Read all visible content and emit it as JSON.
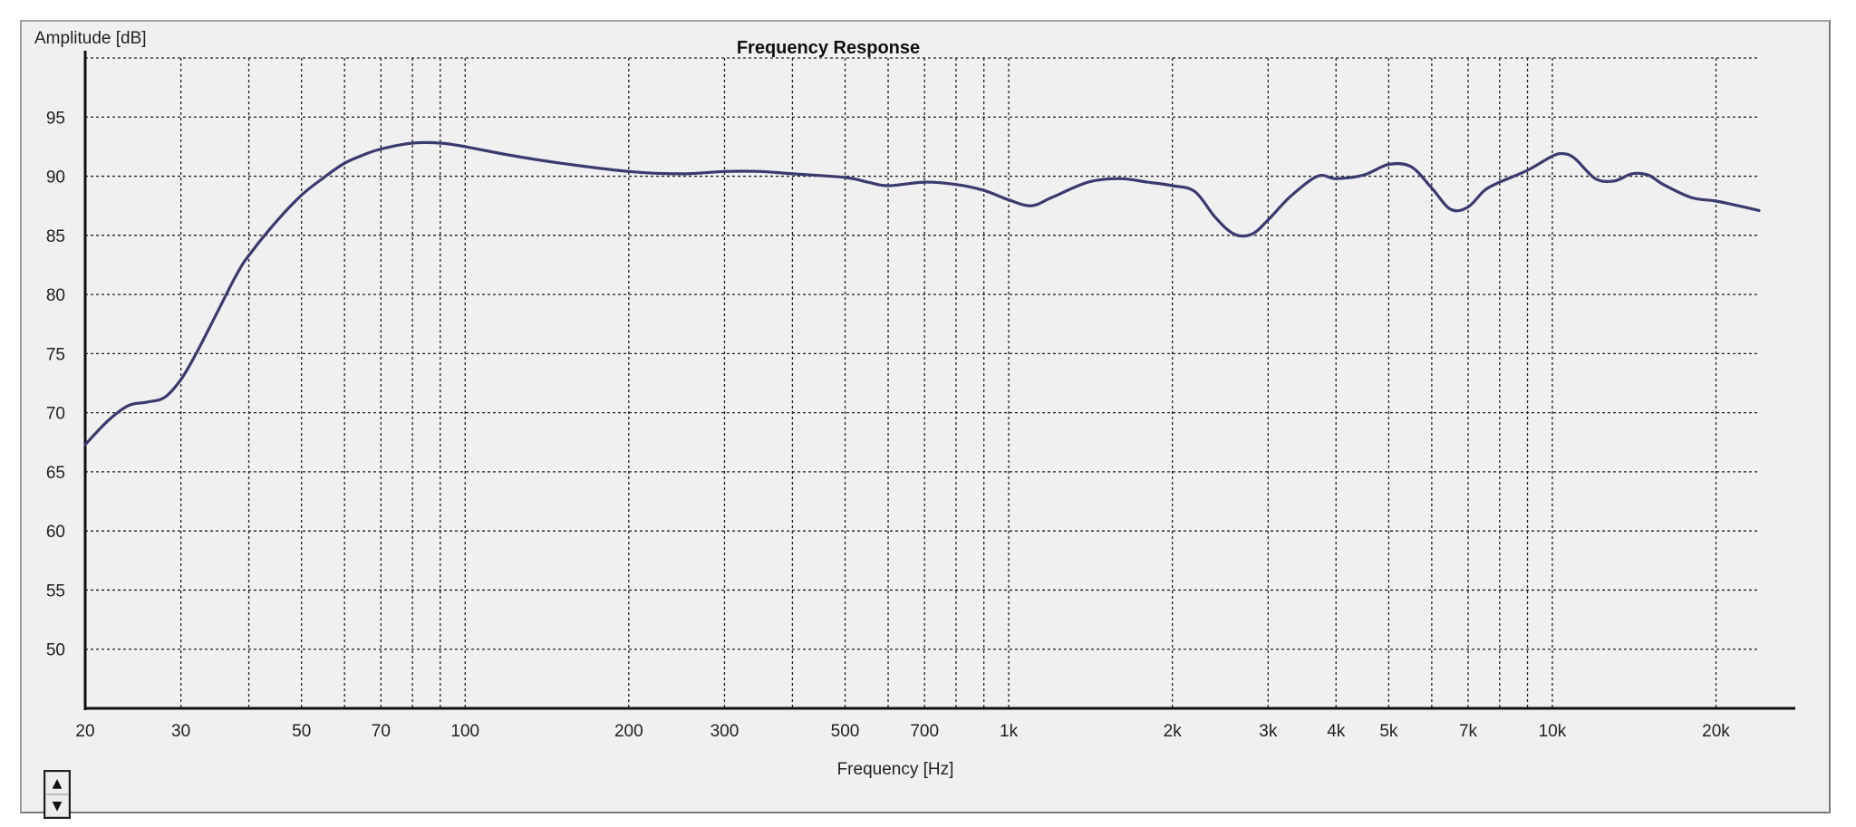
{
  "chart_data": {
    "type": "line",
    "title": "Frequency Response",
    "xlabel": "Frequency [Hz]",
    "ylabel": "Amplitude [dB]",
    "x_scale": "log",
    "xlim": [
      20,
      24000
    ],
    "ylim": [
      45,
      100
    ],
    "grid": true,
    "x_ticks": [
      {
        "value": 20,
        "label": "20"
      },
      {
        "value": 30,
        "label": "30"
      },
      {
        "value": 50,
        "label": "50"
      },
      {
        "value": 70,
        "label": "70"
      },
      {
        "value": 100,
        "label": "100"
      },
      {
        "value": 200,
        "label": "200"
      },
      {
        "value": 300,
        "label": "300"
      },
      {
        "value": 500,
        "label": "500"
      },
      {
        "value": 700,
        "label": "700"
      },
      {
        "value": 1000,
        "label": "1k"
      },
      {
        "value": 2000,
        "label": "2k"
      },
      {
        "value": 3000,
        "label": "3k"
      },
      {
        "value": 4000,
        "label": "4k"
      },
      {
        "value": 5000,
        "label": "5k"
      },
      {
        "value": 7000,
        "label": "7k"
      },
      {
        "value": 10000,
        "label": "10k"
      },
      {
        "value": 20000,
        "label": "20k"
      }
    ],
    "x_gridlines": [
      20,
      30,
      40,
      50,
      60,
      70,
      80,
      90,
      100,
      200,
      300,
      400,
      500,
      600,
      700,
      800,
      900,
      1000,
      2000,
      3000,
      4000,
      5000,
      6000,
      7000,
      8000,
      9000,
      10000,
      20000
    ],
    "y_ticks": [
      {
        "value": 50,
        "label": "50"
      },
      {
        "value": 55,
        "label": "55"
      },
      {
        "value": 60,
        "label": "60"
      },
      {
        "value": 65,
        "label": "65"
      },
      {
        "value": 70,
        "label": "70"
      },
      {
        "value": 75,
        "label": "75"
      },
      {
        "value": 80,
        "label": "80"
      },
      {
        "value": 85,
        "label": "85"
      },
      {
        "value": 90,
        "label": "90"
      },
      {
        "value": 95,
        "label": "95"
      }
    ],
    "y_gridlines": [
      50,
      55,
      60,
      65,
      70,
      75,
      80,
      85,
      90,
      95,
      100
    ],
    "series": [
      {
        "color": "#3a3a6e",
        "x": [
          20,
          22,
          24,
          26,
          28,
          30,
          32,
          35,
          38,
          40,
          45,
          50,
          55,
          60,
          65,
          70,
          80,
          90,
          100,
          120,
          150,
          200,
          250,
          300,
          350,
          400,
          500,
          550,
          600,
          700,
          800,
          900,
          1000,
          1100,
          1200,
          1400,
          1600,
          1800,
          2000,
          2200,
          2400,
          2600,
          2800,
          3000,
          3300,
          3700,
          4000,
          4500,
          5000,
          5500,
          6000,
          6500,
          7000,
          7500,
          8000,
          9000,
          10000,
          10500,
          11000,
          12000,
          13000,
          14000,
          15000,
          16000,
          18000,
          20000,
          22000,
          24000
        ],
        "y": [
          67.3,
          69.3,
          70.6,
          70.9,
          71.3,
          72.8,
          75.0,
          78.5,
          81.7,
          83.3,
          86.2,
          88.4,
          89.9,
          91.1,
          91.8,
          92.3,
          92.8,
          92.8,
          92.5,
          91.8,
          91.1,
          90.4,
          90.2,
          90.4,
          90.4,
          90.2,
          89.9,
          89.5,
          89.2,
          89.5,
          89.3,
          88.8,
          88.0,
          87.5,
          88.2,
          89.5,
          89.8,
          89.5,
          89.2,
          88.7,
          86.5,
          85.1,
          85.1,
          86.3,
          88.3,
          90.0,
          89.8,
          90.1,
          91.0,
          90.8,
          89.0,
          87.2,
          87.4,
          88.8,
          89.5,
          90.5,
          91.7,
          91.9,
          91.5,
          89.8,
          89.6,
          90.2,
          90.1,
          89.3,
          88.2,
          87.9,
          87.5,
          87.1
        ]
      }
    ]
  },
  "controls": {
    "spin_up": "▲",
    "spin_down": "▼"
  }
}
